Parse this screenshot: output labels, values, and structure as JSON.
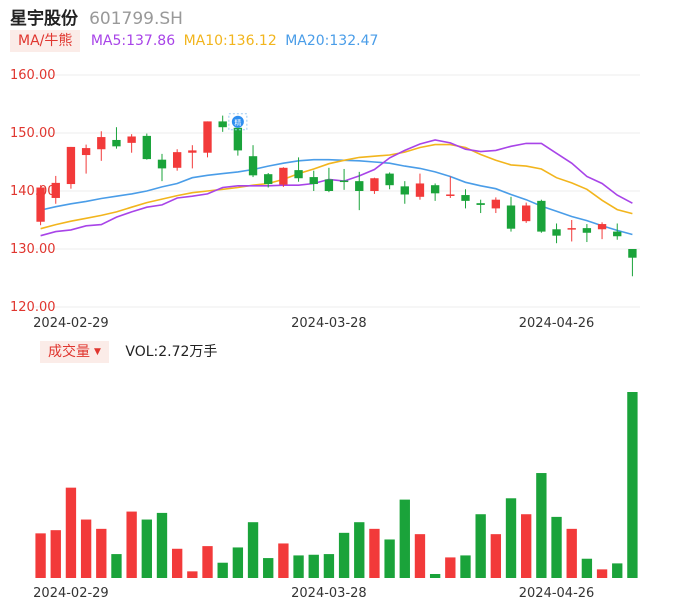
{
  "header": {
    "stock_name": "星宇股份",
    "stock_code": "601799.SH"
  },
  "ma_legend": {
    "toggle_label": "MA/牛熊",
    "ma5": "MA5:137.86",
    "ma10": "MA10:136.12",
    "ma20": "MA20:132.47"
  },
  "vol_legend": {
    "toggle_label": "成交量",
    "vol": "VOL:2.72万手"
  },
  "marker_label": "精",
  "colors": {
    "up": "#f23a3a",
    "down": "#1aa33a",
    "ma5": "#a844e8",
    "ma10": "#f2b51d",
    "ma20": "#4a9de8",
    "axis_text": "#e0362f",
    "date_text": "#333333",
    "grid": "#eeeeee"
  },
  "chart_data": [
    {
      "type": "candlestick",
      "y_ticks": [
        "160.00",
        "150.00",
        "140.00",
        "130.00",
        "120.00"
      ],
      "ylim": [
        120,
        160
      ],
      "x_labels": [
        {
          "index": 2,
          "label": "2024-02-29"
        },
        {
          "index": 19,
          "label": "2024-03-28"
        },
        {
          "index": 34,
          "label": "2024-04-26"
        }
      ],
      "candles": [
        {
          "o": 134.7,
          "c": 140.6,
          "h": 141.0,
          "l": 134.1
        },
        {
          "o": 138.8,
          "c": 141.4,
          "h": 142.6,
          "l": 137.8
        },
        {
          "o": 141.2,
          "c": 147.6,
          "h": 147.6,
          "l": 140.4
        },
        {
          "o": 146.2,
          "c": 147.4,
          "h": 148.0,
          "l": 143.0
        },
        {
          "o": 147.2,
          "c": 149.3,
          "h": 150.3,
          "l": 145.2
        },
        {
          "o": 148.8,
          "c": 147.7,
          "h": 151.0,
          "l": 147.3
        },
        {
          "o": 148.3,
          "c": 149.4,
          "h": 149.8,
          "l": 146.6
        },
        {
          "o": 149.5,
          "c": 145.5,
          "h": 149.9,
          "l": 145.4
        },
        {
          "o": 145.4,
          "c": 143.9,
          "h": 146.4,
          "l": 141.7
        },
        {
          "o": 144.0,
          "c": 146.7,
          "h": 147.2,
          "l": 143.5
        },
        {
          "o": 146.6,
          "c": 147.0,
          "h": 147.9,
          "l": 143.9
        },
        {
          "o": 146.6,
          "c": 152.0,
          "h": 152.0,
          "l": 145.8
        },
        {
          "o": 152.0,
          "c": 151.0,
          "h": 153.0,
          "l": 150.2
        },
        {
          "o": 150.9,
          "c": 147.0,
          "h": 150.9,
          "l": 146.1
        },
        {
          "o": 146.0,
          "c": 142.7,
          "h": 147.9,
          "l": 142.4
        },
        {
          "o": 142.9,
          "c": 141.2,
          "h": 143.1,
          "l": 140.6
        },
        {
          "o": 141.1,
          "c": 144.0,
          "h": 144.1,
          "l": 140.7
        },
        {
          "o": 143.6,
          "c": 142.2,
          "h": 145.8,
          "l": 141.6
        },
        {
          "o": 142.4,
          "c": 141.2,
          "h": 143.5,
          "l": 140.0
        },
        {
          "o": 142.0,
          "c": 140.0,
          "h": 144.0,
          "l": 139.8
        },
        {
          "o": 141.8,
          "c": 141.6,
          "h": 143.8,
          "l": 140.2
        },
        {
          "o": 141.7,
          "c": 140.0,
          "h": 143.3,
          "l": 136.7
        },
        {
          "o": 140.0,
          "c": 142.2,
          "h": 142.3,
          "l": 139.5
        },
        {
          "o": 143.0,
          "c": 141.0,
          "h": 143.2,
          "l": 140.3
        },
        {
          "o": 140.8,
          "c": 139.4,
          "h": 141.7,
          "l": 137.8
        },
        {
          "o": 139.0,
          "c": 141.3,
          "h": 143.0,
          "l": 138.5
        },
        {
          "o": 141.0,
          "c": 139.6,
          "h": 141.3,
          "l": 138.3
        },
        {
          "o": 139.2,
          "c": 139.4,
          "h": 142.5,
          "l": 138.8
        },
        {
          "o": 139.3,
          "c": 138.3,
          "h": 140.3,
          "l": 137.0
        },
        {
          "o": 137.9,
          "c": 137.6,
          "h": 138.5,
          "l": 136.2
        },
        {
          "o": 137.0,
          "c": 138.5,
          "h": 138.9,
          "l": 136.2
        },
        {
          "o": 137.5,
          "c": 133.5,
          "h": 139.0,
          "l": 133.0
        },
        {
          "o": 134.8,
          "c": 137.5,
          "h": 138.0,
          "l": 134.5
        },
        {
          "o": 138.3,
          "c": 133.0,
          "h": 138.5,
          "l": 132.8
        },
        {
          "o": 133.4,
          "c": 132.3,
          "h": 134.4,
          "l": 131.0
        },
        {
          "o": 133.5,
          "c": 133.6,
          "h": 135.0,
          "l": 131.3
        },
        {
          "o": 133.6,
          "c": 132.8,
          "h": 134.3,
          "l": 131.2
        },
        {
          "o": 133.4,
          "c": 134.3,
          "h": 134.6,
          "l": 131.7
        },
        {
          "o": 133.0,
          "c": 132.2,
          "h": 134.4,
          "l": 131.6
        },
        {
          "o": 130.0,
          "c": 128.5,
          "h": 130.0,
          "l": 125.3
        }
      ],
      "ma5": [
        132.3,
        133.0,
        133.3,
        134.0,
        134.2,
        135.5,
        136.4,
        137.2,
        137.6,
        138.8,
        139.1,
        139.5,
        140.6,
        140.9,
        140.9,
        140.9,
        141.0,
        141.0,
        141.3,
        142.0,
        141.7,
        142.6,
        143.7,
        145.7,
        147.0,
        148.1,
        148.8,
        148.3,
        147.2,
        146.8,
        147.0,
        147.7,
        148.2,
        148.2,
        146.5,
        144.8,
        142.5,
        141.3,
        139.3,
        137.9
      ],
      "ma10": [
        133.5,
        134.2,
        134.8,
        135.3,
        135.8,
        136.4,
        137.2,
        138.0,
        138.6,
        139.2,
        139.7,
        140.0,
        140.3,
        140.6,
        141.0,
        141.3,
        142.0,
        143.0,
        143.8,
        144.7,
        145.3,
        145.8,
        146.0,
        146.2,
        146.7,
        147.5,
        148.0,
        148.0,
        147.5,
        146.3,
        145.3,
        144.5,
        144.3,
        143.8,
        142.3,
        141.4,
        140.3,
        138.4,
        136.8,
        136.1
      ],
      "ma20": [
        136.7,
        137.3,
        137.8,
        138.2,
        138.7,
        139.1,
        139.5,
        140.0,
        140.7,
        141.3,
        142.3,
        142.7,
        143.0,
        143.3,
        143.7,
        144.3,
        144.8,
        145.2,
        145.4,
        145.4,
        145.3,
        145.2,
        145.0,
        144.8,
        144.3,
        143.9,
        143.3,
        142.5,
        141.5,
        140.9,
        140.4,
        139.4,
        138.5,
        137.4,
        136.5,
        135.6,
        134.9,
        134.0,
        133.2,
        132.5
      ]
    },
    {
      "type": "bar",
      "series_name": "成交量",
      "values": [
        3.36,
        3.6,
        6.8,
        4.4,
        3.7,
        1.8,
        5.0,
        4.4,
        4.9,
        2.2,
        0.5,
        2.4,
        1.15,
        2.3,
        4.2,
        1.5,
        2.6,
        1.7,
        1.75,
        1.8,
        3.4,
        4.2,
        3.7,
        2.9,
        5.9,
        3.3,
        0.3,
        1.55,
        1.7,
        4.8,
        3.3,
        6.0,
        4.8,
        7.9,
        4.6,
        3.7,
        1.45,
        0.65,
        1.1,
        14.0
      ]
    }
  ]
}
